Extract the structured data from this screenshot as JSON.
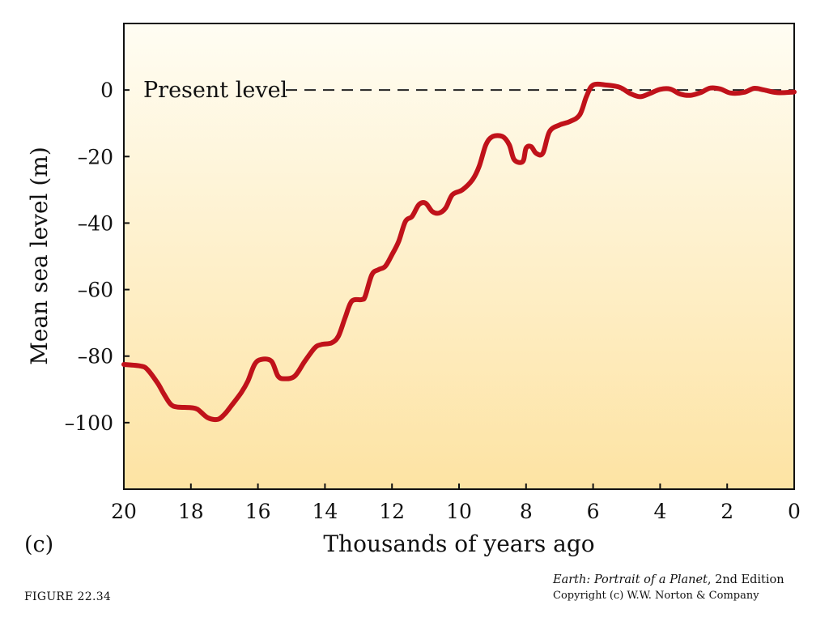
{
  "chart_data": {
    "type": "line",
    "xlabel": "Thousands of years ago",
    "ylabel": "Mean sea level (m)",
    "xlim": [
      20,
      0
    ],
    "ylim": [
      -120,
      20
    ],
    "x_ticks": [
      20,
      18,
      16,
      14,
      12,
      10,
      8,
      6,
      4,
      2,
      0
    ],
    "y_ticks": [
      0,
      -20,
      -40,
      -60,
      -80,
      -100
    ],
    "y_tick_labels": [
      "0",
      "–20",
      "–40",
      "–60",
      "–80",
      "–100"
    ],
    "grid": false,
    "background_gradient": [
      "#fffdf3",
      "#fde3a3"
    ],
    "reference_line": {
      "y": 0,
      "label": "Present level",
      "style": "dashed",
      "color": "#222222"
    },
    "series": [
      {
        "color": "#c0121a",
        "points": [
          [
            20.0,
            -82.5
          ],
          [
            19.5,
            -83
          ],
          [
            19.3,
            -84
          ],
          [
            19.0,
            -88
          ],
          [
            18.8,
            -91.5
          ],
          [
            18.6,
            -94.5
          ],
          [
            18.4,
            -95.3
          ],
          [
            18.0,
            -95.5
          ],
          [
            17.8,
            -96
          ],
          [
            17.5,
            -98.5
          ],
          [
            17.2,
            -99
          ],
          [
            17.0,
            -97.5
          ],
          [
            16.8,
            -95
          ],
          [
            16.5,
            -91
          ],
          [
            16.3,
            -87.5
          ],
          [
            16.1,
            -82.5
          ],
          [
            15.9,
            -81
          ],
          [
            15.6,
            -81.5
          ],
          [
            15.4,
            -86
          ],
          [
            15.2,
            -86.8
          ],
          [
            14.9,
            -86
          ],
          [
            14.6,
            -81.5
          ],
          [
            14.3,
            -77.5
          ],
          [
            14.1,
            -76.5
          ],
          [
            13.8,
            -76
          ],
          [
            13.6,
            -74
          ],
          [
            13.4,
            -68.5
          ],
          [
            13.2,
            -63.5
          ],
          [
            12.9,
            -63
          ],
          [
            12.8,
            -62
          ],
          [
            12.6,
            -55.5
          ],
          [
            12.4,
            -54
          ],
          [
            12.2,
            -53
          ],
          [
            12.0,
            -49.5
          ],
          [
            11.8,
            -45.5
          ],
          [
            11.6,
            -39.5
          ],
          [
            11.4,
            -38
          ],
          [
            11.2,
            -34.5
          ],
          [
            11.0,
            -34
          ],
          [
            10.8,
            -36.5
          ],
          [
            10.6,
            -37
          ],
          [
            10.4,
            -35.5
          ],
          [
            10.2,
            -31.5
          ],
          [
            9.9,
            -30
          ],
          [
            9.6,
            -27
          ],
          [
            9.4,
            -23
          ],
          [
            9.2,
            -16.5
          ],
          [
            9.0,
            -14
          ],
          [
            8.7,
            -14
          ],
          [
            8.5,
            -16.5
          ],
          [
            8.35,
            -21
          ],
          [
            8.1,
            -21.5
          ],
          [
            8.0,
            -17.5
          ],
          [
            7.85,
            -17
          ],
          [
            7.7,
            -19
          ],
          [
            7.5,
            -19
          ],
          [
            7.3,
            -12.5
          ],
          [
            7.0,
            -10.5
          ],
          [
            6.7,
            -9.5
          ],
          [
            6.4,
            -7.5
          ],
          [
            6.2,
            -2
          ],
          [
            6.0,
            1.5
          ],
          [
            5.6,
            1.5
          ],
          [
            5.2,
            0.8
          ],
          [
            4.9,
            -1
          ],
          [
            4.6,
            -2
          ],
          [
            4.3,
            -1
          ],
          [
            4.0,
            0.2
          ],
          [
            3.7,
            0.3
          ],
          [
            3.4,
            -1.2
          ],
          [
            3.1,
            -1.6
          ],
          [
            2.8,
            -0.8
          ],
          [
            2.5,
            0.6
          ],
          [
            2.2,
            0.3
          ],
          [
            1.9,
            -0.9
          ],
          [
            1.5,
            -0.7
          ],
          [
            1.2,
            0.5
          ],
          [
            0.9,
            0
          ],
          [
            0.5,
            -0.8
          ],
          [
            0.0,
            -0.6
          ]
        ]
      }
    ]
  },
  "panel_label": "(c)",
  "figure_number": "FIGURE 22.34",
  "credit": {
    "book_title": "Earth: Portrait of a Planet",
    "edition": ", 2nd Edition",
    "copyright": "Copyright (c) W.W. Norton & Company"
  }
}
